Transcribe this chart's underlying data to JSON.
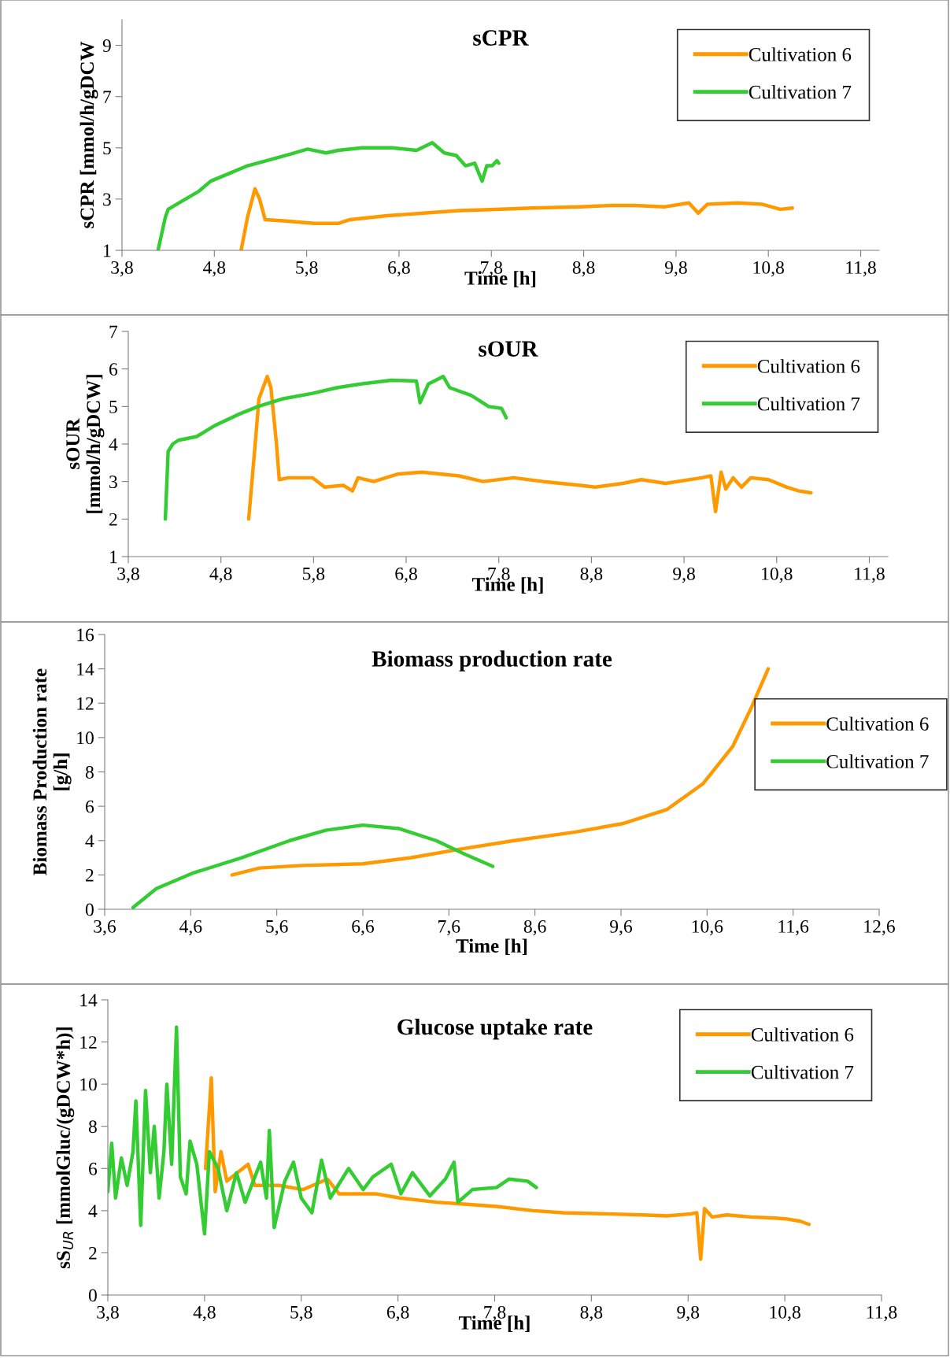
{
  "chart_data": [
    {
      "type": "line",
      "title": "sCPR",
      "xlabel": "Time [h]",
      "ylabel": "sCPR [mmol/h/gDCW",
      "legend": "top right",
      "grid": false,
      "xlim": [
        3.8,
        12.0
      ],
      "xticks": [
        {
          "value": 3.8,
          "label": "3,8"
        },
        {
          "value": 4.8,
          "label": "4,8"
        },
        {
          "value": 5.8,
          "label": "5,8"
        },
        {
          "value": 6.8,
          "label": "6,8"
        },
        {
          "value": 7.8,
          "label": "7,8"
        },
        {
          "value": 8.8,
          "label": "8,8"
        },
        {
          "value": 9.8,
          "label": "9,8"
        },
        {
          "value": 10.8,
          "label": "10,8"
        },
        {
          "value": 11.8,
          "label": "11,8"
        }
      ],
      "ylim": [
        1,
        10
      ],
      "yticks": [
        1,
        3,
        5,
        7,
        9
      ],
      "series": [
        {
          "name": "Cultivation 6",
          "color": "#ff9900",
          "x": [
            5.09,
            5.16,
            5.24,
            5.29,
            5.35,
            5.55,
            5.88,
            6.14,
            6.27,
            6.67,
            7.06,
            7.45,
            7.85,
            8.24,
            8.76,
            9.09,
            9.35,
            9.68,
            9.94,
            10.04,
            10.14,
            10.47,
            10.73,
            10.93,
            11.06
          ],
          "values": [
            1,
            2.3,
            3.4,
            3.0,
            2.2,
            2.15,
            2.05,
            2.05,
            2.2,
            2.35,
            2.45,
            2.55,
            2.6,
            2.65,
            2.7,
            2.75,
            2.75,
            2.7,
            2.85,
            2.45,
            2.8,
            2.85,
            2.8,
            2.6,
            2.65
          ]
        },
        {
          "name": "Cultivation 7",
          "color": "#33cc33",
          "x": [
            4.19,
            4.27,
            4.3,
            4.44,
            4.63,
            4.76,
            4.96,
            5.16,
            5.42,
            5.62,
            5.81,
            6.01,
            6.14,
            6.4,
            6.73,
            6.99,
            7.16,
            7.29,
            7.42,
            7.52,
            7.62,
            7.7,
            7.75,
            7.81,
            7.86,
            7.88
          ],
          "values": [
            1,
            2.3,
            2.6,
            2.9,
            3.3,
            3.7,
            4.0,
            4.3,
            4.55,
            4.75,
            4.95,
            4.8,
            4.9,
            5.0,
            5.0,
            4.9,
            5.2,
            4.8,
            4.7,
            4.3,
            4.4,
            3.7,
            4.3,
            4.3,
            4.5,
            4.4
          ]
        }
      ]
    },
    {
      "type": "line",
      "title": "sOUR",
      "xlabel": "Time [h]",
      "ylabel": "sOUR\n[mmol/h/gDCW]",
      "legend": "top right",
      "grid": false,
      "xlim": [
        3.8,
        12.0
      ],
      "xticks": [
        {
          "value": 3.8,
          "label": "3,8"
        },
        {
          "value": 4.8,
          "label": "4,8"
        },
        {
          "value": 5.8,
          "label": "5,8"
        },
        {
          "value": 6.8,
          "label": "6,8"
        },
        {
          "value": 7.8,
          "label": "7,8"
        },
        {
          "value": 8.8,
          "label": "8,8"
        },
        {
          "value": 9.8,
          "label": "9,8"
        },
        {
          "value": 10.8,
          "label": "10,8"
        },
        {
          "value": 11.8,
          "label": "11,8"
        }
      ],
      "ylim": [
        1,
        7
      ],
      "yticks": [
        1,
        2,
        3,
        4,
        5,
        6,
        7
      ],
      "series": [
        {
          "name": "Cultivation 6",
          "color": "#ff9900",
          "x": [
            5.1,
            5.17,
            5.21,
            5.3,
            5.34,
            5.4,
            5.43,
            5.53,
            5.79,
            5.92,
            6.12,
            6.22,
            6.28,
            6.45,
            6.71,
            6.97,
            7.37,
            7.63,
            7.96,
            8.28,
            8.68,
            8.84,
            9.14,
            9.34,
            9.6,
            9.99,
            10.09,
            10.14,
            10.2,
            10.25,
            10.33,
            10.42,
            10.52,
            10.71,
            10.91,
            11.04,
            11.17
          ],
          "values": [
            2.0,
            4.0,
            5.2,
            5.8,
            5.5,
            4.0,
            3.05,
            3.1,
            3.1,
            2.85,
            2.9,
            2.75,
            3.1,
            3.0,
            3.2,
            3.25,
            3.15,
            3.0,
            3.1,
            3.0,
            2.9,
            2.85,
            2.95,
            3.05,
            2.95,
            3.1,
            3.15,
            2.2,
            3.25,
            2.8,
            3.1,
            2.85,
            3.1,
            3.05,
            2.85,
            2.75,
            2.7
          ]
        },
        {
          "name": "Cultivation 7",
          "color": "#33cc33",
          "x": [
            4.2,
            4.23,
            4.28,
            4.34,
            4.54,
            4.74,
            5.0,
            5.2,
            5.46,
            5.79,
            6.05,
            6.31,
            6.64,
            6.91,
            6.95,
            7.04,
            7.2,
            7.27,
            7.5,
            7.69,
            7.83,
            7.88
          ],
          "values": [
            2.0,
            3.8,
            4.0,
            4.1,
            4.2,
            4.5,
            4.8,
            5.0,
            5.2,
            5.35,
            5.5,
            5.6,
            5.7,
            5.68,
            5.1,
            5.6,
            5.8,
            5.5,
            5.3,
            5.0,
            4.95,
            4.7
          ]
        }
      ]
    },
    {
      "type": "line",
      "title": "Biomass production rate",
      "xlabel": "Time [h]",
      "ylabel": "Biomass Production rate\n[g/h]",
      "legend": "right",
      "grid": false,
      "xlim": [
        3.6,
        12.6
      ],
      "xticks": [
        {
          "value": 3.6,
          "label": "3,6"
        },
        {
          "value": 4.6,
          "label": "4,6"
        },
        {
          "value": 5.6,
          "label": "5,6"
        },
        {
          "value": 6.6,
          "label": "6,6"
        },
        {
          "value": 7.6,
          "label": "7,6"
        },
        {
          "value": 8.6,
          "label": "8,6"
        },
        {
          "value": 9.6,
          "label": "9,6"
        },
        {
          "value": 10.6,
          "label": "10,6"
        },
        {
          "value": 11.6,
          "label": "11,6"
        },
        {
          "value": 12.6,
          "label": "12,6"
        }
      ],
      "ylim": [
        0,
        16
      ],
      "yticks": [
        0,
        2,
        4,
        6,
        8,
        10,
        12,
        14,
        16
      ],
      "series": [
        {
          "name": "Cultivation 6",
          "color": "#ff9900",
          "x": [
            5.08,
            5.4,
            5.89,
            6.6,
            7.16,
            7.73,
            8.36,
            9.07,
            9.63,
            10.13,
            10.55,
            10.9,
            11.12,
            11.31
          ],
          "values": [
            2.0,
            2.4,
            2.55,
            2.65,
            3.0,
            3.5,
            4.0,
            4.5,
            5.0,
            5.8,
            7.3,
            9.5,
            11.8,
            14.0
          ]
        },
        {
          "name": "Cultivation 7",
          "color": "#33cc33",
          "x": [
            3.93,
            4.2,
            4.62,
            5.19,
            5.75,
            6.17,
            6.6,
            7.02,
            7.45,
            7.79,
            8.11
          ],
          "values": [
            0.1,
            1.2,
            2.1,
            3.0,
            4.0,
            4.6,
            4.9,
            4.7,
            4.0,
            3.2,
            2.5
          ]
        }
      ]
    },
    {
      "type": "line",
      "title": "Glucose uptake rate",
      "xlabel": "Time [h]",
      "ylabel": "sS$_{UR}$ [mmolGluc/(gDCW*h)]",
      "legend": "top right",
      "grid": false,
      "xlim": [
        3.8,
        11.8
      ],
      "xticks": [
        {
          "value": 3.8,
          "label": "3,8"
        },
        {
          "value": 4.8,
          "label": "4,8"
        },
        {
          "value": 5.8,
          "label": "5,8"
        },
        {
          "value": 6.8,
          "label": "6,8"
        },
        {
          "value": 7.8,
          "label": "7,8"
        },
        {
          "value": 8.8,
          "label": "8,8"
        },
        {
          "value": 9.8,
          "label": "9,8"
        },
        {
          "value": 10.8,
          "label": "10,8"
        },
        {
          "value": 11.8,
          "label": "11,8"
        }
      ],
      "ylim": [
        0,
        14
      ],
      "yticks": [
        0,
        2,
        4,
        6,
        8,
        10,
        12,
        14
      ],
      "series": [
        {
          "name": "Cultivation 6",
          "color": "#ff9900",
          "x": [
            4.81,
            4.87,
            4.91,
            4.97,
            5.03,
            5.25,
            5.32,
            5.57,
            5.82,
            6.07,
            6.19,
            6.57,
            6.82,
            7.2,
            7.51,
            7.82,
            8.2,
            8.51,
            8.95,
            9.33,
            9.58,
            9.83,
            9.89,
            9.93,
            9.97,
            10.05,
            10.2,
            10.45,
            10.7,
            10.83,
            10.96,
            11.05
          ],
          "values": [
            6.0,
            10.3,
            4.9,
            6.8,
            5.4,
            6.2,
            5.2,
            5.2,
            5.0,
            5.5,
            4.8,
            4.8,
            4.6,
            4.4,
            4.3,
            4.2,
            4.0,
            3.9,
            3.85,
            3.8,
            3.75,
            3.85,
            3.9,
            1.7,
            4.1,
            3.7,
            3.8,
            3.7,
            3.65,
            3.6,
            3.5,
            3.35
          ]
        },
        {
          "name": "Cultivation 7",
          "color": "#33cc33",
          "x": [
            3.8,
            3.84,
            3.88,
            3.94,
            4.0,
            4.06,
            4.09,
            4.14,
            4.19,
            4.24,
            4.28,
            4.33,
            4.38,
            4.41,
            4.46,
            4.51,
            4.55,
            4.61,
            4.65,
            4.72,
            4.8,
            4.85,
            4.94,
            5.03,
            5.13,
            5.22,
            5.32,
            5.38,
            5.44,
            5.47,
            5.52,
            5.63,
            5.72,
            5.8,
            5.91,
            6.01,
            6.1,
            6.29,
            6.44,
            6.54,
            6.73,
            6.83,
            6.95,
            7.13,
            7.29,
            7.38,
            7.42,
            7.57,
            7.82,
            7.95,
            8.14,
            8.23
          ],
          "values": [
            4.9,
            7.2,
            4.6,
            6.5,
            5.2,
            6.8,
            9.2,
            3.3,
            9.7,
            5.8,
            8.0,
            4.6,
            6.8,
            10.0,
            6.2,
            12.7,
            5.6,
            4.8,
            7.3,
            6.2,
            2.9,
            6.8,
            6.0,
            4.0,
            5.8,
            4.4,
            5.6,
            6.3,
            4.6,
            7.8,
            3.2,
            5.4,
            6.3,
            4.6,
            3.9,
            6.4,
            4.6,
            6.0,
            5.0,
            5.6,
            6.2,
            4.8,
            5.8,
            4.7,
            5.5,
            6.3,
            4.4,
            5.0,
            5.1,
            5.5,
            5.4,
            5.1
          ]
        }
      ]
    }
  ]
}
